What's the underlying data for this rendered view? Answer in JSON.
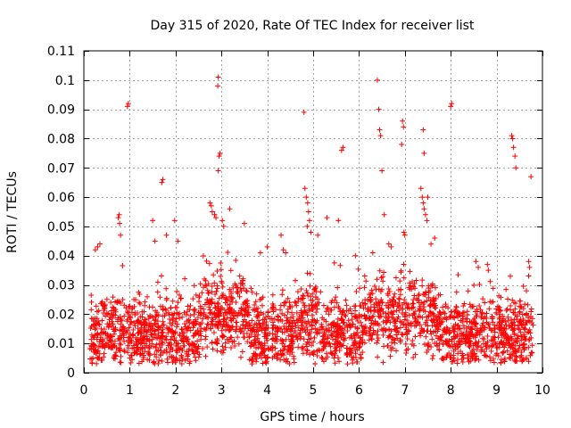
{
  "chart_data": {
    "type": "scatter",
    "title": "Day 315 of 2020, Rate Of TEC Index for receiver list",
    "xlabel": "GPS time / hours",
    "ylabel": "ROTI / TECUs",
    "xlim": [
      0,
      10
    ],
    "ylim": [
      0,
      0.11
    ],
    "grid": true,
    "marker": "+",
    "marker_color": "#ff0000",
    "x_ticks": [
      0,
      1,
      2,
      3,
      4,
      5,
      6,
      7,
      8,
      9,
      10
    ],
    "x_tick_labels": [
      "0",
      "1",
      "2",
      "3",
      "4",
      "5",
      "6",
      "7",
      "8",
      "9",
      "10"
    ],
    "y_ticks": [
      0,
      0.01,
      0.02,
      0.03,
      0.04,
      0.05,
      0.06,
      0.07,
      0.08,
      0.09,
      0.1,
      0.11
    ],
    "y_tick_labels": [
      "0",
      "0.01",
      "0.02",
      "0.03",
      "0.04",
      "0.05",
      "0.06",
      "0.07",
      "0.08",
      "0.09",
      "0.1",
      "0.11"
    ],
    "series": [
      {
        "name": "ROTI",
        "points": [
          [
            0.95,
            0.091
          ],
          [
            0.97,
            0.092
          ],
          [
            2.93,
            0.101
          ],
          [
            2.92,
            0.098
          ],
          [
            2.95,
            0.074
          ],
          [
            2.97,
            0.075
          ],
          [
            2.93,
            0.069
          ],
          [
            4.8,
            0.089
          ],
          [
            6.4,
            0.1
          ],
          [
            6.43,
            0.09
          ],
          [
            6.45,
            0.083
          ],
          [
            6.47,
            0.081
          ],
          [
            6.95,
            0.086
          ],
          [
            6.97,
            0.084
          ],
          [
            6.93,
            0.078
          ],
          [
            7.4,
            0.083
          ],
          [
            7.42,
            0.075
          ],
          [
            8.0,
            0.091
          ],
          [
            8.02,
            0.092
          ],
          [
            9.33,
            0.081
          ],
          [
            9.35,
            0.08
          ],
          [
            9.37,
            0.077
          ],
          [
            9.4,
            0.074
          ],
          [
            9.42,
            0.07
          ],
          [
            9.75,
            0.067
          ],
          [
            5.62,
            0.076
          ],
          [
            5.65,
            0.077
          ],
          [
            6.5,
            0.069
          ],
          [
            1.7,
            0.065
          ],
          [
            1.72,
            0.066
          ],
          [
            2.75,
            0.058
          ],
          [
            2.78,
            0.057
          ],
          [
            2.8,
            0.055
          ],
          [
            2.85,
            0.054
          ],
          [
            2.88,
            0.053
          ],
          [
            3.02,
            0.052
          ],
          [
            3.05,
            0.05
          ],
          [
            3.18,
            0.056
          ],
          [
            4.82,
            0.063
          ],
          [
            4.85,
            0.06
          ],
          [
            4.88,
            0.058
          ],
          [
            4.9,
            0.055
          ],
          [
            4.92,
            0.052
          ],
          [
            4.87,
            0.05
          ],
          [
            4.95,
            0.048
          ],
          [
            7.35,
            0.063
          ],
          [
            7.38,
            0.06
          ],
          [
            7.4,
            0.058
          ],
          [
            7.42,
            0.056
          ],
          [
            7.45,
            0.054
          ],
          [
            7.48,
            0.052
          ],
          [
            7.5,
            0.06
          ],
          [
            0.75,
            0.053
          ],
          [
            0.77,
            0.054
          ],
          [
            0.78,
            0.051
          ],
          [
            0.8,
            0.047
          ],
          [
            1.5,
            0.052
          ],
          [
            1.98,
            0.052
          ],
          [
            5.3,
            0.053
          ],
          [
            5.55,
            0.052
          ],
          [
            6.55,
            0.054
          ],
          [
            6.98,
            0.048
          ],
          [
            7.0,
            0.047
          ],
          [
            0.3,
            0.043
          ],
          [
            0.35,
            0.044
          ],
          [
            0.25,
            0.042
          ],
          [
            1.55,
            0.045
          ],
          [
            1.8,
            0.047
          ],
          [
            2.05,
            0.045
          ],
          [
            3.5,
            0.051
          ],
          [
            4.0,
            0.043
          ],
          [
            4.3,
            0.047
          ],
          [
            4.35,
            0.042
          ],
          [
            4.4,
            0.041
          ],
          [
            5.1,
            0.047
          ],
          [
            6.65,
            0.044
          ],
          [
            6.7,
            0.043
          ],
          [
            7.65,
            0.046
          ],
          [
            8.55,
            0.038
          ],
          [
            8.6,
            0.036
          ],
          [
            8.8,
            0.037
          ],
          [
            8.82,
            0.035
          ],
          [
            9.7,
            0.038
          ],
          [
            9.72,
            0.036
          ],
          [
            9.3,
            0.033
          ],
          [
            9.65,
            0.028
          ],
          [
            5.92,
            0.04
          ],
          [
            6.3,
            0.041
          ],
          [
            3.85,
            0.041
          ]
        ]
      }
    ]
  }
}
